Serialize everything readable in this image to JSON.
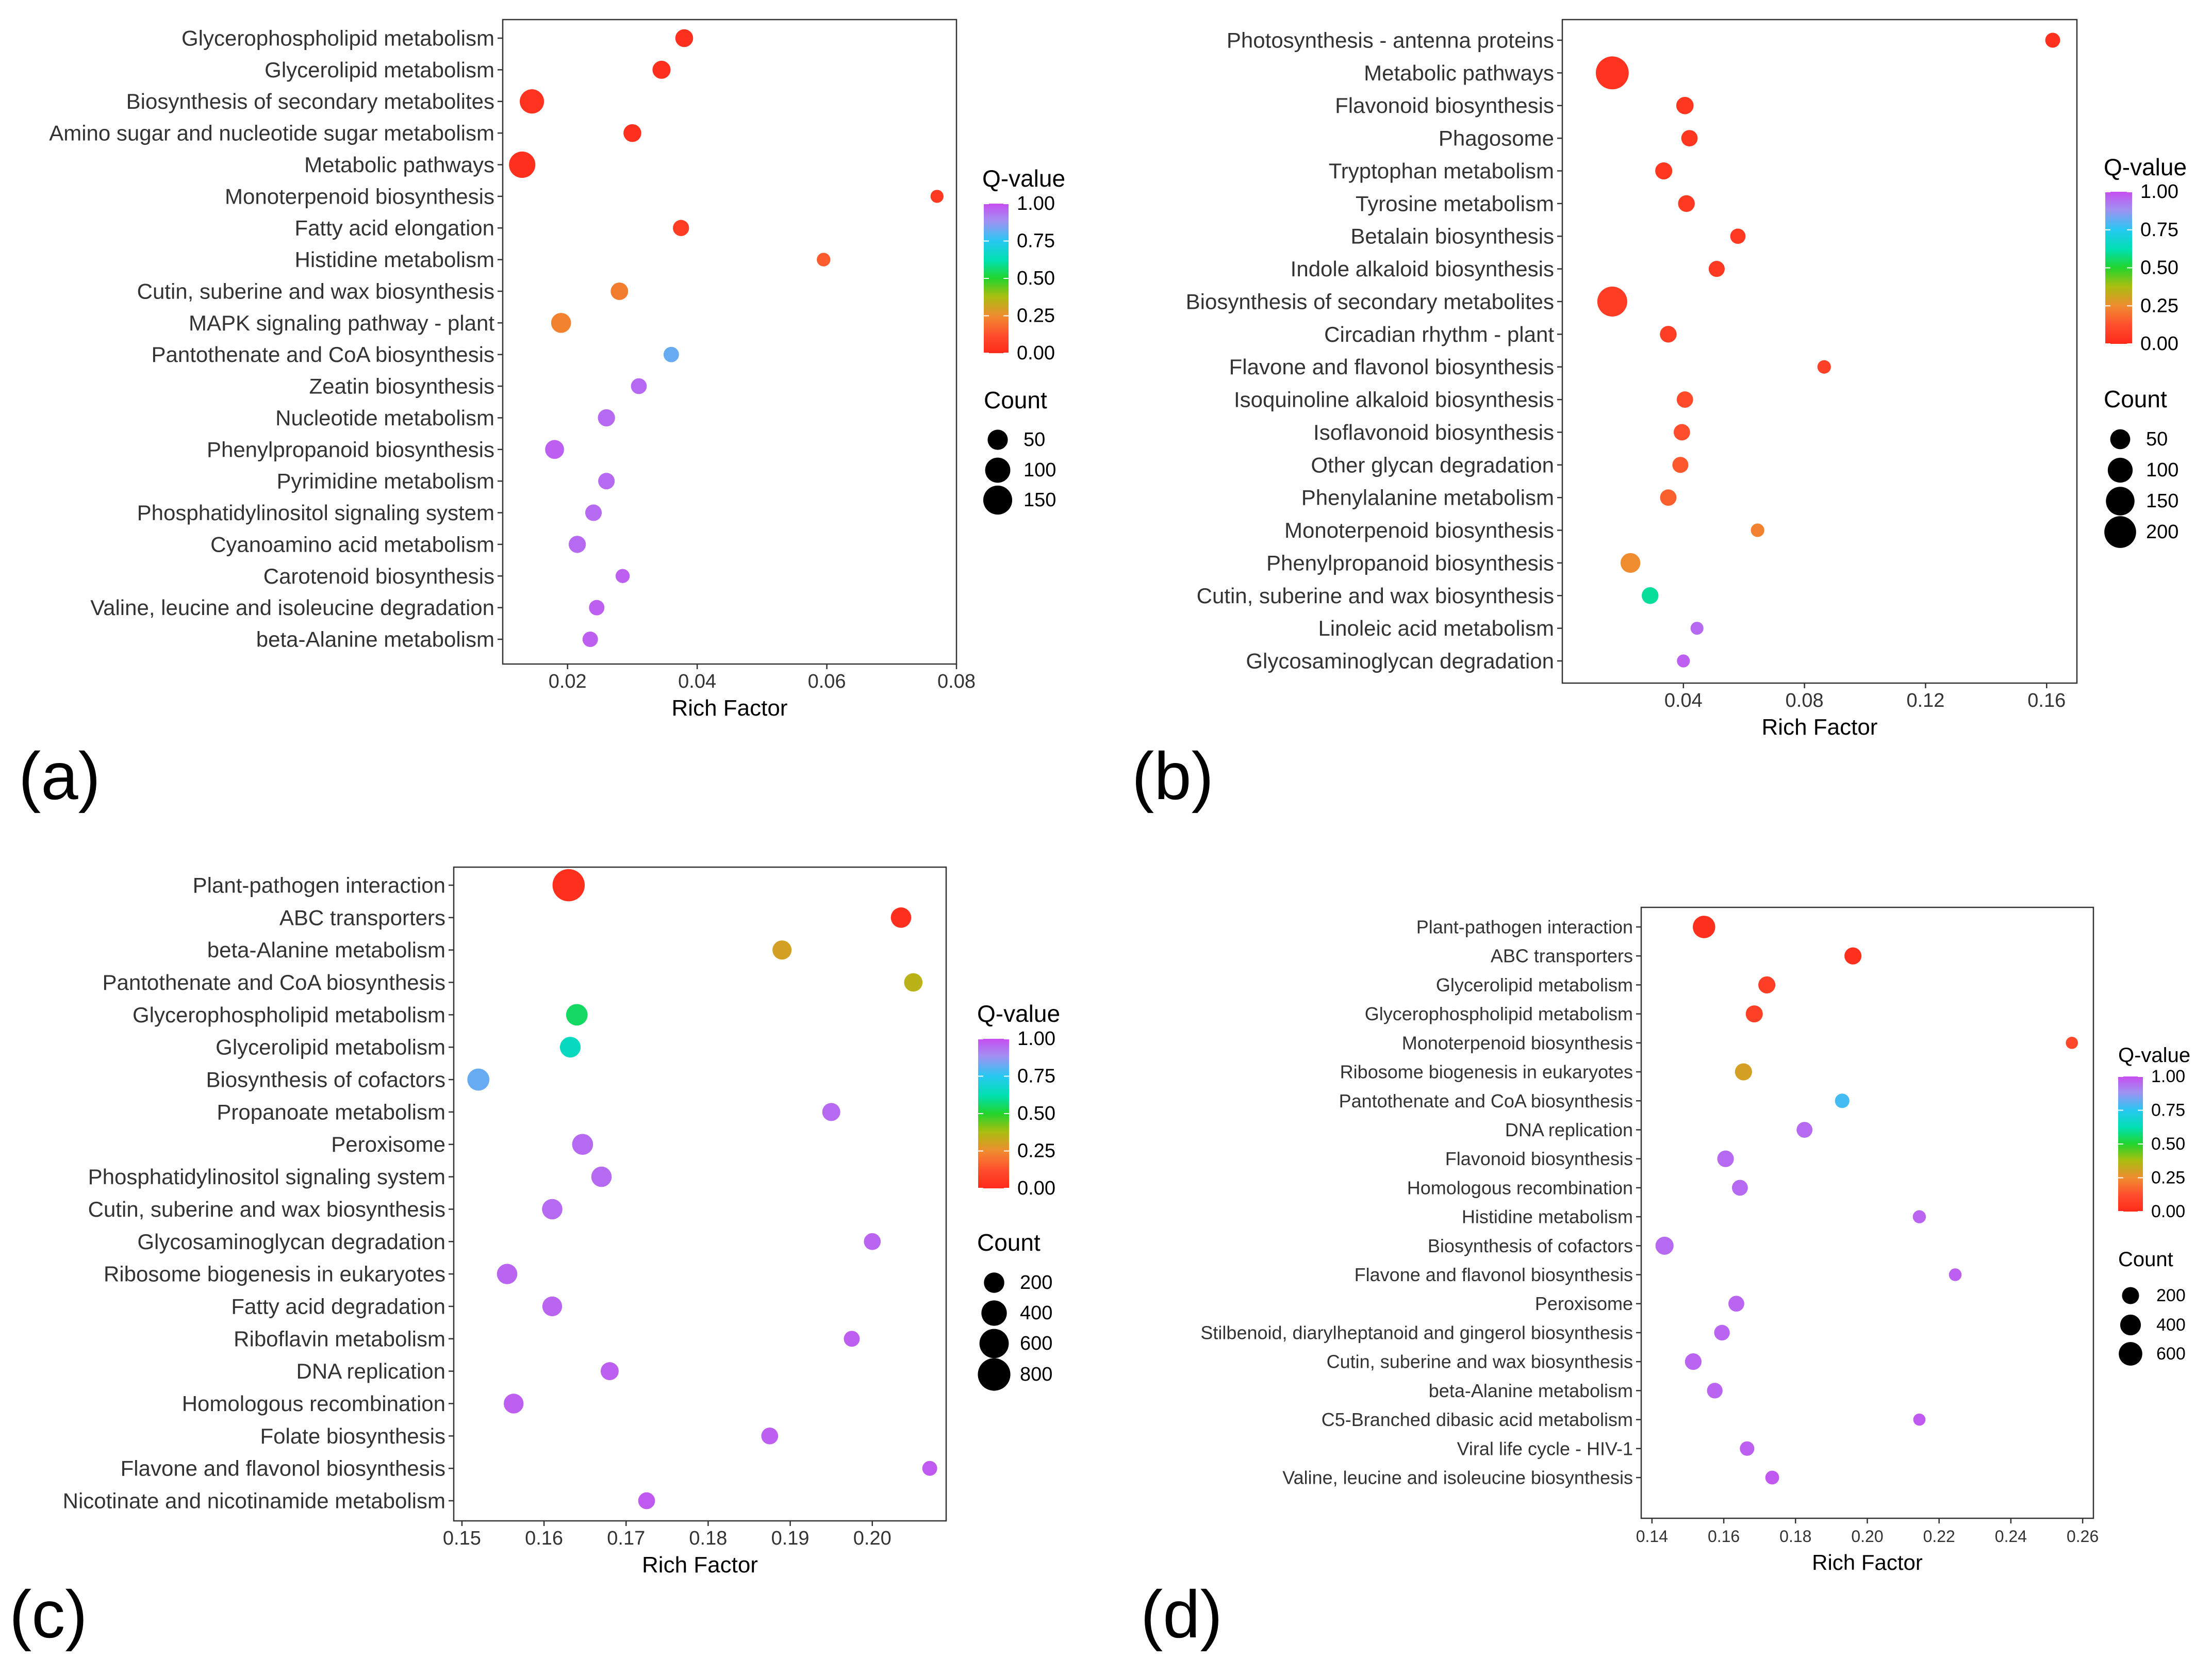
{
  "panel_labels": [
    "(a)",
    "(b)",
    "(c)",
    "(d)"
  ],
  "chart_data": [
    {
      "type": "scatter",
      "panel": "(a)",
      "title": "",
      "xlabel": "Rich Factor",
      "ylabel": "",
      "xlim": [
        0.01,
        0.08
      ],
      "xticks": [
        0.02,
        0.04,
        0.06,
        0.08
      ],
      "xtick_labels": [
        "0.02",
        "0.04",
        "0.06",
        "0.08"
      ],
      "colorbar_title": "Q-value",
      "colorbar_ticks": [
        "1.00",
        "0.75",
        "0.50",
        "0.25",
        "0.00"
      ],
      "size_legend_title": "Count",
      "size_legend": [
        50,
        100,
        150
      ],
      "size_legend_labels": [
        "50",
        "100",
        "150"
      ],
      "count_max": 180,
      "categories": [
        "Glycerophospholipid metabolism",
        "Glycerolipid metabolism",
        "Biosynthesis of secondary metabolites",
        "Amino sugar and nucleotide sugar metabolism",
        "Metabolic pathways",
        "Monoterpenoid biosynthesis",
        "Fatty acid elongation",
        "Histidine metabolism",
        "Cutin, suberine and wax biosynthesis",
        "MAPK signaling pathway - plant",
        "Pantothenate and CoA biosynthesis",
        "Zeatin biosynthesis",
        "Nucleotide metabolism",
        "Phenylpropanoid biosynthesis",
        "Pyrimidine metabolism",
        "Phosphatidylinositol signaling system",
        "Cyanoamino acid metabolism",
        "Carotenoid biosynthesis",
        "Valine, leucine and isoleucine degradation",
        "beta-Alanine metabolism"
      ],
      "rich_factor": [
        0.038,
        0.0345,
        0.0145,
        0.03,
        0.013,
        0.077,
        0.0375,
        0.0595,
        0.028,
        0.019,
        0.036,
        0.031,
        0.026,
        0.018,
        0.026,
        0.024,
        0.0215,
        0.0285,
        0.0245,
        0.0235
      ],
      "q_value": [
        0.02,
        0.02,
        0.03,
        0.02,
        0.02,
        0.05,
        0.06,
        0.15,
        0.22,
        0.23,
        0.82,
        0.95,
        0.95,
        0.97,
        0.95,
        0.95,
        0.95,
        0.97,
        0.97,
        0.97
      ],
      "count": [
        32,
        34,
        90,
        32,
        115,
        8,
        22,
        10,
        30,
        48,
        18,
        20,
        28,
        40,
        24,
        24,
        28,
        12,
        18,
        18
      ]
    },
    {
      "type": "scatter",
      "panel": "(b)",
      "title": "",
      "xlabel": "Rich Factor",
      "ylabel": "",
      "xlim": [
        0.0,
        0.17
      ],
      "xticks": [
        0.04,
        0.08,
        0.12,
        0.16
      ],
      "xtick_labels": [
        "0.04",
        "0.08",
        "0.12",
        "0.16"
      ],
      "colorbar_title": "Q-value",
      "colorbar_ticks": [
        "1.00",
        "0.75",
        "0.50",
        "0.25",
        "0.00"
      ],
      "size_legend_title": "Count",
      "size_legend": [
        50,
        100,
        150,
        200
      ],
      "size_legend_labels": [
        "50",
        "100",
        "150",
        "200"
      ],
      "count_max": 240,
      "categories": [
        "Photosynthesis - antenna proteins",
        "Metabolic pathways",
        "Flavonoid biosynthesis",
        "Phagosome",
        "Tryptophan metabolism",
        "Tyrosine metabolism",
        "Betalain biosynthesis",
        "Indole alkaloid biosynthesis",
        "Biosynthesis of secondary metabolites",
        "Circadian rhythm - plant",
        "Flavone and flavonol biosynthesis",
        "Isoquinoline alkaloid biosynthesis",
        "Isoflavonoid biosynthesis",
        "Other glycan degradation",
        "Phenylalanine metabolism",
        "Monoterpenoid biosynthesis",
        "Phenylpropanoid biosynthesis",
        "Cutin, suberine and wax biosynthesis",
        "Linoleic acid metabolism",
        "Glycosaminoglycan degradation"
      ],
      "rich_factor": [
        0.162,
        0.0165,
        0.0405,
        0.042,
        0.0335,
        0.041,
        0.058,
        0.051,
        0.0165,
        0.035,
        0.0865,
        0.0405,
        0.0395,
        0.039,
        0.035,
        0.0645,
        0.0225,
        0.029,
        0.0445,
        0.04
      ],
      "q_value": [
        0.02,
        0.03,
        0.04,
        0.04,
        0.04,
        0.05,
        0.05,
        0.05,
        0.06,
        0.07,
        0.08,
        0.11,
        0.12,
        0.14,
        0.16,
        0.23,
        0.25,
        0.6,
        0.95,
        0.97
      ],
      "count": [
        16,
        220,
        30,
        24,
        28,
        26,
        18,
        22,
        170,
        26,
        10,
        24,
        24,
        22,
        24,
        10,
        48,
        26,
        8,
        8
      ]
    },
    {
      "type": "scatter",
      "panel": "(c)",
      "title": "",
      "xlabel": "Rich Factor",
      "ylabel": "",
      "xlim": [
        0.149,
        0.209
      ],
      "xticks": [
        0.15,
        0.16,
        0.17,
        0.18,
        0.19,
        0.2
      ],
      "xtick_labels": [
        "0.15",
        "0.16",
        "0.17",
        "0.18",
        "0.19",
        "0.20"
      ],
      "colorbar_title": "Q-value",
      "colorbar_ticks": [
        "1.00",
        "0.75",
        "0.50",
        "0.25",
        "0.00"
      ],
      "size_legend_title": "Count",
      "size_legend": [
        200,
        400,
        600,
        800
      ],
      "size_legend_labels": [
        "200",
        "400",
        "600",
        "800"
      ],
      "count_max": 900,
      "categories": [
        "Plant-pathogen interaction",
        "ABC transporters",
        "beta-Alanine metabolism",
        "Pantothenate and CoA biosynthesis",
        "Glycerophospholipid metabolism",
        "Glycerolipid metabolism",
        "Biosynthesis of cofactors",
        "Propanoate metabolism",
        "Peroxisome",
        "Phosphatidylinositol signaling system",
        "Cutin, suberine and wax biosynthesis",
        "Glycosaminoglycan degradation",
        "Ribosome biogenesis in eukaryotes",
        "Fatty acid degradation",
        "Riboflavin metabolism",
        "DNA replication",
        "Homologous recombination",
        "Folate biosynthesis",
        "Flavone and flavonol biosynthesis",
        "Nicotinate and nicotinamide metabolism"
      ],
      "rich_factor": [
        0.163,
        0.2035,
        0.189,
        0.205,
        0.164,
        0.1632,
        0.152,
        0.195,
        0.1647,
        0.167,
        0.161,
        0.2,
        0.1555,
        0.161,
        0.1975,
        0.168,
        0.1563,
        0.1875,
        0.207,
        0.1725
      ],
      "q_value": [
        0.02,
        0.02,
        0.3,
        0.35,
        0.55,
        0.65,
        0.82,
        0.95,
        0.95,
        0.95,
        0.95,
        0.96,
        0.96,
        0.96,
        0.97,
        0.97,
        0.97,
        0.97,
        0.98,
        0.98
      ],
      "count": [
        780,
        200,
        160,
        140,
        240,
        210,
        260,
        130,
        220,
        200,
        200,
        100,
        200,
        180,
        80,
        130,
        180,
        100,
        60,
        100
      ]
    },
    {
      "type": "scatter",
      "panel": "(d)",
      "title": "",
      "xlabel": "Rich Factor",
      "ylabel": "",
      "xlim": [
        0.137,
        0.263
      ],
      "xticks": [
        0.14,
        0.16,
        0.18,
        0.2,
        0.22,
        0.24,
        0.26
      ],
      "xtick_labels": [
        "0.14",
        "0.16",
        "0.18",
        "0.20",
        "0.22",
        "0.24",
        "0.26"
      ],
      "colorbar_title": "Q-value",
      "colorbar_ticks": [
        "1.00",
        "0.75",
        "0.50",
        "0.25",
        "0.00"
      ],
      "size_legend_title": "Count",
      "size_legend": [
        200,
        400,
        600
      ],
      "size_legend_labels": [
        "200",
        "400",
        "600"
      ],
      "count_max": 700,
      "categories": [
        "Plant-pathogen interaction",
        "ABC transporters",
        "Glycerolipid metabolism",
        "Glycerophospholipid metabolism",
        "Monoterpenoid biosynthesis",
        "Ribosome biogenesis in eukaryotes",
        "Pantothenate and CoA biosynthesis",
        "DNA replication",
        "Flavonoid biosynthesis",
        "Homologous recombination",
        "Histidine metabolism",
        "Biosynthesis of cofactors",
        "Flavone and flavonol biosynthesis",
        "Peroxisome",
        "Stilbenoid, diarylheptanoid and gingerol biosynthesis",
        "Cutin, suberine and wax biosynthesis",
        "beta-Alanine metabolism",
        "C5-Branched dibasic acid metabolism",
        "Viral life cycle - HIV-1",
        "Valine, leucine and isoleucine biosynthesis"
      ],
      "rich_factor": [
        0.1545,
        0.196,
        0.172,
        0.1685,
        0.257,
        0.1655,
        0.193,
        0.1825,
        0.1605,
        0.1645,
        0.2145,
        0.1435,
        0.2245,
        0.1635,
        0.1595,
        0.1515,
        0.1575,
        0.2145,
        0.1665,
        0.1735
      ],
      "q_value": [
        0.02,
        0.02,
        0.07,
        0.08,
        0.1,
        0.3,
        0.78,
        0.95,
        0.95,
        0.95,
        0.96,
        0.95,
        0.97,
        0.96,
        0.96,
        0.96,
        0.96,
        0.98,
        0.97,
        0.98
      ],
      "count": [
        520,
        200,
        200,
        200,
        40,
        200,
        100,
        150,
        180,
        150,
        60,
        250,
        50,
        150,
        140,
        180,
        140,
        40,
        100,
        80
      ]
    }
  ]
}
